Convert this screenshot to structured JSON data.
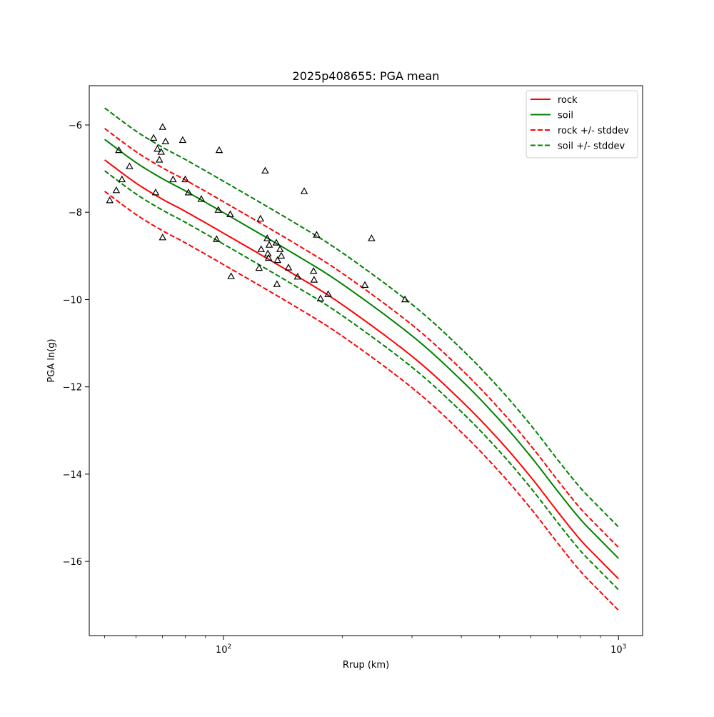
{
  "chart_data": {
    "type": "line",
    "title": "2025p408655: PGA mean",
    "xlabel": "Rrup (km)",
    "ylabel": "PGA ln(g)",
    "xscale": "log",
    "xlim": [
      45.7,
      1151
    ],
    "ylim": [
      -17.7,
      -5.1
    ],
    "xticks": [
      {
        "value": 100,
        "base": "10",
        "exp": "2"
      },
      {
        "value": 1000,
        "base": "10",
        "exp": "3"
      }
    ],
    "xminor_ticks": [
      50,
      60,
      70,
      80,
      90,
      200,
      300,
      400,
      500,
      600,
      700,
      800,
      900
    ],
    "yticks": [
      {
        "value": -6,
        "label": "−6"
      },
      {
        "value": -8,
        "label": "−8"
      },
      {
        "value": -10,
        "label": "−10"
      },
      {
        "value": -12,
        "label": "−12"
      },
      {
        "value": -14,
        "label": "−14"
      },
      {
        "value": -16,
        "label": "−16"
      }
    ],
    "grid": false,
    "legend": "top-right",
    "x": [
      50,
      60,
      70,
      80,
      100,
      150,
      200,
      300,
      400,
      500,
      600,
      700,
      800,
      900,
      1000
    ],
    "series": [
      {
        "name": "rock",
        "color": "#ff0000",
        "dash": false,
        "values": [
          -6.8,
          -7.33,
          -7.7,
          -7.98,
          -8.48,
          -9.41,
          -10.12,
          -11.3,
          -12.32,
          -13.23,
          -14.07,
          -14.85,
          -15.5,
          -15.98,
          -16.4
        ]
      },
      {
        "name": "soil",
        "color": "#008000",
        "dash": false,
        "values": [
          -6.33,
          -6.86,
          -7.23,
          -7.51,
          -8.01,
          -8.94,
          -9.65,
          -10.83,
          -11.85,
          -12.76,
          -13.6,
          -14.38,
          -15.03,
          -15.51,
          -15.93
        ]
      },
      {
        "name": "rock +/- stddev",
        "color": "#ff0000",
        "dash": true,
        "values": [
          -6.08,
          -6.61,
          -6.98,
          -7.26,
          -7.76,
          -8.69,
          -9.4,
          -10.58,
          -11.6,
          -12.51,
          -13.35,
          -14.13,
          -14.78,
          -15.26,
          -15.68
        ]
      },
      {
        "name": "",
        "color": "#ff0000",
        "dash": true,
        "values": [
          -7.52,
          -8.05,
          -8.42,
          -8.7,
          -9.2,
          -10.13,
          -10.84,
          -12.02,
          -13.04,
          -13.95,
          -14.79,
          -15.57,
          -16.22,
          -16.7,
          -17.12
        ]
      },
      {
        "name": "soil +/- stddev",
        "color": "#008000",
        "dash": true,
        "values": [
          -5.61,
          -6.14,
          -6.51,
          -6.79,
          -7.29,
          -8.22,
          -8.93,
          -10.11,
          -11.13,
          -12.04,
          -12.88,
          -13.66,
          -14.31,
          -14.79,
          -15.21
        ]
      },
      {
        "name": "",
        "color": "#008000",
        "dash": true,
        "values": [
          -7.05,
          -7.58,
          -7.95,
          -8.23,
          -8.73,
          -9.66,
          -10.37,
          -11.55,
          -12.57,
          -13.48,
          -14.32,
          -15.1,
          -15.75,
          -16.23,
          -16.65
        ]
      }
    ],
    "observations": {
      "marker": "triangle",
      "color": "#000000",
      "points": [
        [
          51.5,
          -7.73
        ],
        [
          53.5,
          -7.5
        ],
        [
          54.3,
          -6.58
        ],
        [
          55.3,
          -7.25
        ],
        [
          57.8,
          -6.95
        ],
        [
          66.5,
          -6.3
        ],
        [
          67.3,
          -7.55
        ],
        [
          68.0,
          -6.55
        ],
        [
          68.8,
          -6.8
        ],
        [
          69.5,
          -6.62
        ],
        [
          70.1,
          -6.05
        ],
        [
          70.1,
          -8.58
        ],
        [
          71.3,
          -6.38
        ],
        [
          74.5,
          -7.25
        ],
        [
          78.8,
          -6.35
        ],
        [
          80.0,
          -7.25
        ],
        [
          81.5,
          -7.55
        ],
        [
          87.8,
          -7.7
        ],
        [
          96.0,
          -8.62
        ],
        [
          97.0,
          -7.95
        ],
        [
          97.5,
          -6.58
        ],
        [
          104,
          -8.05
        ],
        [
          104.5,
          -9.47
        ],
        [
          123,
          -9.28
        ],
        [
          124,
          -8.15
        ],
        [
          124.5,
          -8.85
        ],
        [
          127.5,
          -7.05
        ],
        [
          129,
          -8.6
        ],
        [
          129.5,
          -8.95
        ],
        [
          130,
          -9.05
        ],
        [
          130.5,
          -8.75
        ],
        [
          136,
          -8.7
        ],
        [
          136.5,
          -9.65
        ],
        [
          137,
          -9.1
        ],
        [
          139,
          -8.85
        ],
        [
          140,
          -9.0
        ],
        [
          146,
          -9.27
        ],
        [
          154,
          -9.48
        ],
        [
          160,
          -7.52
        ],
        [
          169,
          -9.35
        ],
        [
          169.5,
          -9.55
        ],
        [
          172,
          -8.52
        ],
        [
          176,
          -9.98
        ],
        [
          184,
          -9.88
        ],
        [
          228,
          -9.67
        ],
        [
          237,
          -8.6
        ],
        [
          288,
          -10.0
        ]
      ]
    }
  }
}
